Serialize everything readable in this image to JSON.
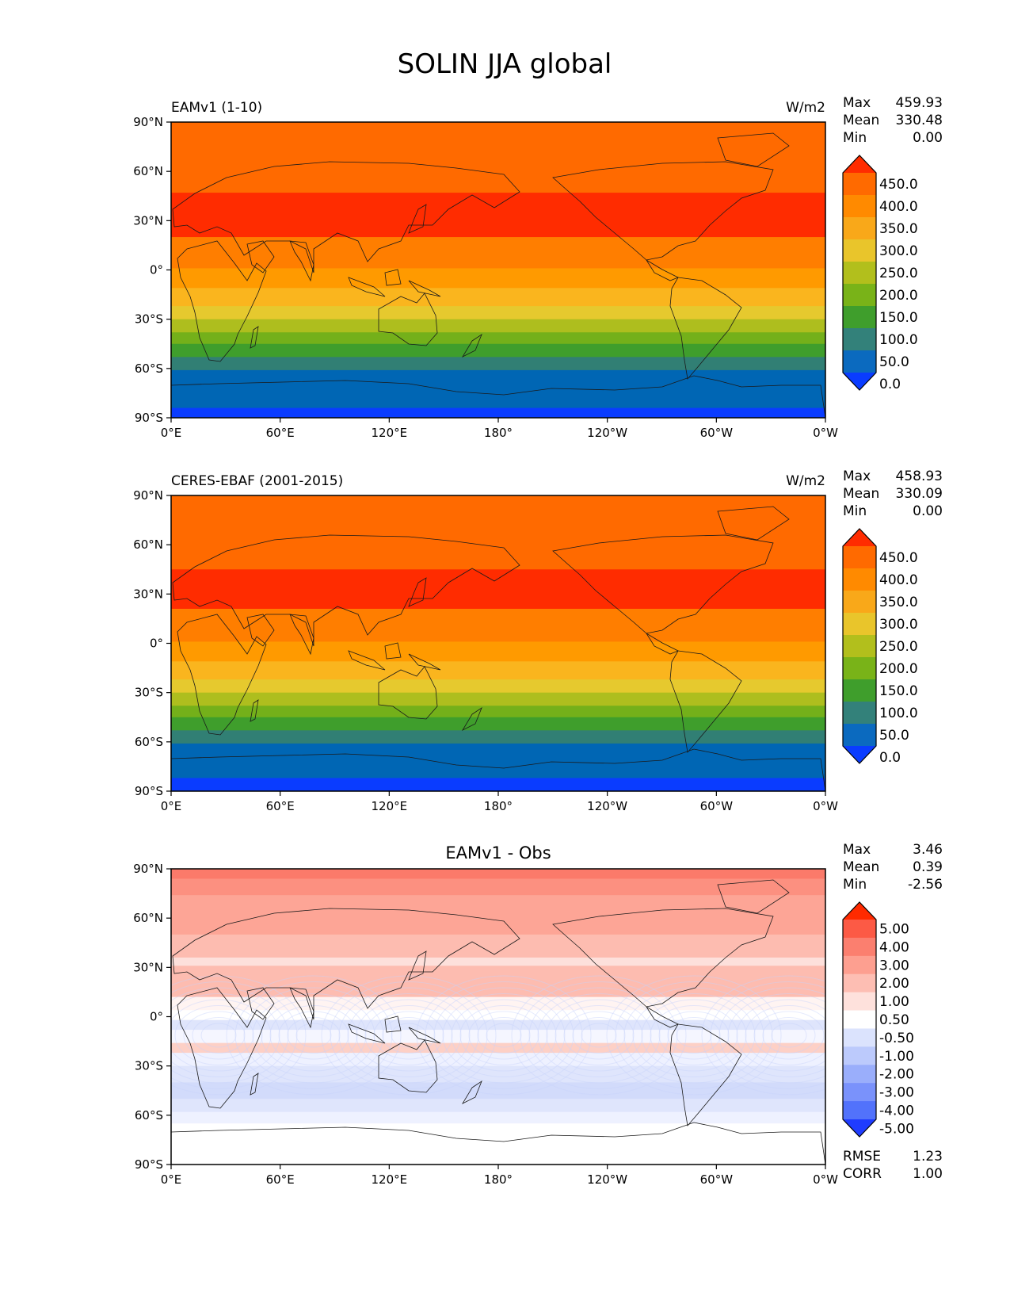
{
  "figure_title": "SOLIN JJA global",
  "chart_data": [
    {
      "type": "heatmap",
      "title": "EAMv1 (1-10)",
      "units": "W/m2",
      "stats": {
        "max_label": "Max",
        "max": "459.93",
        "mean_label": "Mean",
        "mean": "330.48",
        "min_label": "Min",
        "min": "0.00"
      },
      "xticks": [
        "0°E",
        "60°E",
        "120°E",
        "180°",
        "120°W",
        "60°W",
        "0°W"
      ],
      "yticks": [
        "90°N",
        "60°N",
        "30°N",
        "0°",
        "30°S",
        "60°S",
        "90°S"
      ],
      "xlim": [
        0,
        360
      ],
      "ylim": [
        -90,
        90
      ],
      "bands": [
        {
          "lat": [
            47,
            90
          ],
          "color": "#ff6a00"
        },
        {
          "lat": [
            20,
            47
          ],
          "color": "#ff2c00"
        },
        {
          "lat": [
            1,
            20
          ],
          "color": "#ff7e00"
        },
        {
          "lat": [
            -11,
            1
          ],
          "color": "#ff9a00"
        },
        {
          "lat": [
            -22,
            -11
          ],
          "color": "#fab51e"
        },
        {
          "lat": [
            -30,
            -22
          ],
          "color": "#e6c92e"
        },
        {
          "lat": [
            -38,
            -30
          ],
          "color": "#aebe1e"
        },
        {
          "lat": [
            -45,
            -38
          ],
          "color": "#74b01a"
        },
        {
          "lat": [
            -53,
            -45
          ],
          "color": "#3f9e2c"
        },
        {
          "lat": [
            -61,
            -53
          ],
          "color": "#317f74"
        },
        {
          "lat": [
            -84,
            -61
          ],
          "color": "#0066b4"
        },
        {
          "lat": [
            -90,
            -84
          ],
          "color": "#0a3cff"
        }
      ],
      "colorbar": {
        "labels": [
          "450.0",
          "400.0",
          "350.0",
          "300.0",
          "250.0",
          "200.0",
          "150.0",
          "100.0",
          "50.0",
          "0.0"
        ],
        "colors": [
          "#ff2c00",
          "#ff6a00",
          "#ff8a00",
          "#f9a819",
          "#e9c52b",
          "#b2bf1c",
          "#79b318",
          "#3f9e2c",
          "#33817a",
          "#0b6abf",
          "#0a3cff"
        ]
      }
    },
    {
      "type": "heatmap",
      "title": "CERES-EBAF (2001-2015)",
      "units": "W/m2",
      "stats": {
        "max_label": "Max",
        "max": "458.93",
        "mean_label": "Mean",
        "mean": "330.09",
        "min_label": "Min",
        "min": "0.00"
      },
      "xticks": [
        "0°E",
        "60°E",
        "120°E",
        "180°",
        "120°W",
        "60°W",
        "0°W"
      ],
      "yticks": [
        "90°N",
        "60°N",
        "30°N",
        "0°",
        "30°S",
        "60°S",
        "90°S"
      ],
      "xlim": [
        0,
        360
      ],
      "ylim": [
        -90,
        90
      ],
      "bands": [
        {
          "lat": [
            45,
            90
          ],
          "color": "#ff6a00"
        },
        {
          "lat": [
            21,
            45
          ],
          "color": "#ff2c00"
        },
        {
          "lat": [
            1,
            21
          ],
          "color": "#ff7e00"
        },
        {
          "lat": [
            -11,
            1
          ],
          "color": "#ff9a00"
        },
        {
          "lat": [
            -22,
            -11
          ],
          "color": "#fab51e"
        },
        {
          "lat": [
            -30,
            -22
          ],
          "color": "#e6c92e"
        },
        {
          "lat": [
            -38,
            -30
          ],
          "color": "#aebe1e"
        },
        {
          "lat": [
            -45,
            -38
          ],
          "color": "#74b01a"
        },
        {
          "lat": [
            -53,
            -45
          ],
          "color": "#3f9e2c"
        },
        {
          "lat": [
            -61,
            -53
          ],
          "color": "#317f74"
        },
        {
          "lat": [
            -82,
            -61
          ],
          "color": "#0066b4"
        },
        {
          "lat": [
            -90,
            -82
          ],
          "color": "#0a3cff"
        }
      ],
      "colorbar": {
        "labels": [
          "450.0",
          "400.0",
          "350.0",
          "300.0",
          "250.0",
          "200.0",
          "150.0",
          "100.0",
          "50.0",
          "0.0"
        ],
        "colors": [
          "#ff2c00",
          "#ff6a00",
          "#ff8a00",
          "#f9a819",
          "#e9c52b",
          "#b2bf1c",
          "#79b318",
          "#3f9e2c",
          "#33817a",
          "#0b6abf",
          "#0a3cff"
        ]
      }
    },
    {
      "type": "heatmap",
      "title": "EAMv1 - Obs",
      "units": "",
      "stats": {
        "max_label": "Max",
        "max": "3.46",
        "mean_label": "Mean",
        "mean": "0.39",
        "min_label": "Min",
        "min": "-2.56"
      },
      "extra_stats": {
        "rmse_label": "RMSE",
        "rmse": "1.23",
        "corr_label": "CORR",
        "corr": "1.00"
      },
      "xticks": [
        "0°E",
        "60°E",
        "120°E",
        "180°",
        "120°W",
        "60°W",
        "0°W"
      ],
      "yticks": [
        "90°N",
        "60°N",
        "30°N",
        "0°",
        "30°S",
        "60°S",
        "90°S"
      ],
      "xlim": [
        0,
        360
      ],
      "ylim": [
        -90,
        90
      ],
      "bands": [
        {
          "lat": [
            84,
            90
          ],
          "color": "#fb7a6a"
        },
        {
          "lat": [
            74,
            84
          ],
          "color": "#fc9080"
        },
        {
          "lat": [
            50,
            74
          ],
          "color": "#fda596"
        },
        {
          "lat": [
            36,
            50
          ],
          "color": "#fdbcb0"
        },
        {
          "lat": [
            31,
            36
          ],
          "color": "#fde0db"
        },
        {
          "lat": [
            12,
            31
          ],
          "color": "#fdbcb0"
        },
        {
          "lat": [
            4,
            12
          ],
          "color": "#fff4f2"
        },
        {
          "lat": [
            -2,
            4
          ],
          "color": "#ffffff"
        },
        {
          "lat": [
            -8,
            -2
          ],
          "color": "#dfe5fc"
        },
        {
          "lat": [
            -16,
            -8
          ],
          "color": "#f5f6ff"
        },
        {
          "lat": [
            -22,
            -16
          ],
          "color": "#fdd0c6"
        },
        {
          "lat": [
            -30,
            -22
          ],
          "color": "#eef1ff"
        },
        {
          "lat": [
            -40,
            -30
          ],
          "color": "#dfe5fc"
        },
        {
          "lat": [
            -50,
            -40
          ],
          "color": "#d2dbfb"
        },
        {
          "lat": [
            -58,
            -50
          ],
          "color": "#dfe5fc"
        },
        {
          "lat": [
            -65,
            -58
          ],
          "color": "#eef1ff"
        },
        {
          "lat": [
            -90,
            -65
          ],
          "color": "#ffffff"
        }
      ],
      "colorbar": {
        "labels": [
          "5.00",
          "4.00",
          "3.00",
          "2.00",
          "1.00",
          "0.50",
          "-0.50",
          "-1.00",
          "-2.00",
          "-3.00",
          "-4.00",
          "-5.00"
        ],
        "colors": [
          "#ff2a00",
          "#fc5a45",
          "#fb7f6f",
          "#fd9f90",
          "#fdbeb3",
          "#fee1dc",
          "#ffffff",
          "#dbe3fd",
          "#bccafc",
          "#9aaefb",
          "#7a92fb",
          "#5272fb",
          "#1f3cff"
        ]
      }
    }
  ]
}
